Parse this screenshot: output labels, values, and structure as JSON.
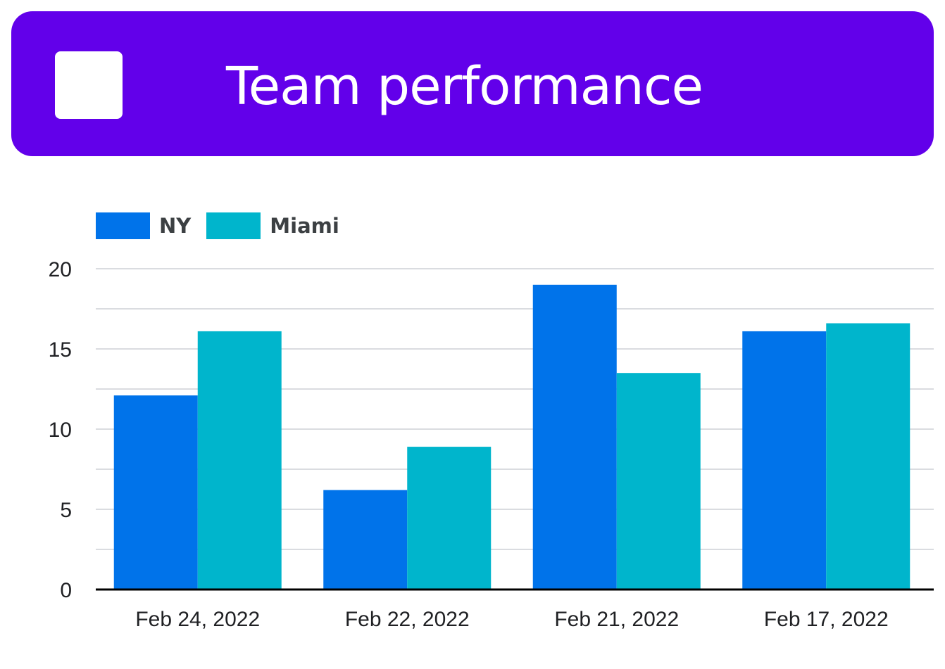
{
  "header": {
    "title": "Team performance",
    "background_color": "#6200ea",
    "logo_color": "#ffffff"
  },
  "chart_data": {
    "type": "bar",
    "categories": [
      "Feb 24, 2022",
      "Feb 22, 2022",
      "Feb 21, 2022",
      "Feb 17, 2022"
    ],
    "series": [
      {
        "name": "NY",
        "color": "#0073ea",
        "values": [
          12.1,
          6.2,
          19,
          16.1
        ]
      },
      {
        "name": "Miami",
        "color": "#00b5cc",
        "values": [
          16.1,
          8.9,
          13.5,
          16.6
        ]
      }
    ],
    "y_ticks": [
      "0",
      "5",
      "10",
      "15",
      "20"
    ],
    "ylim": [
      0,
      20
    ],
    "grid": true,
    "legend_position": "top-left"
  }
}
